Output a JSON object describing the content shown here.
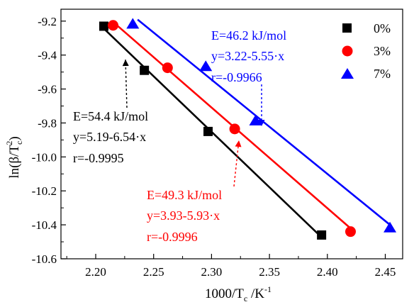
{
  "chart_data": {
    "type": "scatter",
    "x_ticks": [
      "2.20",
      "2.25",
      "2.30",
      "2.35",
      "2.40",
      "2.45"
    ],
    "y_ticks": [
      "-9.2",
      "-9.4",
      "-9.6",
      "-9.8",
      "-10.0",
      "-10.2",
      "-10.4",
      "-10.6"
    ],
    "xlim": [
      2.17,
      2.465
    ],
    "ylim": [
      -10.6,
      -9.13
    ],
    "xlabel": {
      "main": "1000/T",
      "sub": "c",
      "tail": " /K",
      "sup": "-1"
    },
    "ylabel": {
      "main": "ln(β/T",
      "sub": "c",
      "sup": "2",
      "tail": ")"
    },
    "legend_position": "top-right",
    "series": [
      {
        "name": "0%",
        "color": "#000000",
        "marker": "square",
        "points": [
          [
            2.207,
            -9.23
          ],
          [
            2.242,
            -9.49
          ],
          [
            2.297,
            -9.85
          ],
          [
            2.395,
            -10.46
          ]
        ],
        "fit": {
          "intercept": 5.19,
          "slope": -6.54,
          "x_range": [
            2.2075,
            2.3955
          ]
        }
      },
      {
        "name": "3%",
        "color": "#ff0000",
        "marker": "circle",
        "points": [
          [
            2.215,
            -9.225
          ],
          [
            2.262,
            -9.475
          ],
          [
            2.32,
            -9.835
          ],
          [
            2.42,
            -10.44
          ]
        ],
        "fit": {
          "intercept": 3.93,
          "slope": -5.93,
          "x_range": [
            2.215,
            2.4235
          ]
        }
      },
      {
        "name": "7%",
        "color": "#0000ff",
        "marker": "triangle",
        "points": [
          [
            2.232,
            -9.215
          ],
          [
            2.295,
            -9.465
          ],
          [
            2.338,
            -9.785
          ],
          [
            2.454,
            -10.415
          ]
        ],
        "fit": {
          "intercept": 3.22,
          "slope": -5.55,
          "x_range": [
            2.2362,
            2.4543
          ]
        }
      }
    ],
    "annotations": [
      {
        "id": "a0",
        "color": "#000000",
        "lines": [
          "E=54.4 kJ/mol",
          "y=5.19-6.54·x",
          "r=-0.9995"
        ]
      },
      {
        "id": "a3",
        "color": "#ff0000",
        "lines": [
          "E=49.3 kJ/mol",
          "y=3.93-5.93·x",
          "r=-0.9996"
        ]
      },
      {
        "id": "a7",
        "color": "#0000ff",
        "lines": [
          "E=46.2 kJ/mol",
          "y=3.22-5.55·x",
          "r=-0.9966"
        ]
      }
    ]
  }
}
